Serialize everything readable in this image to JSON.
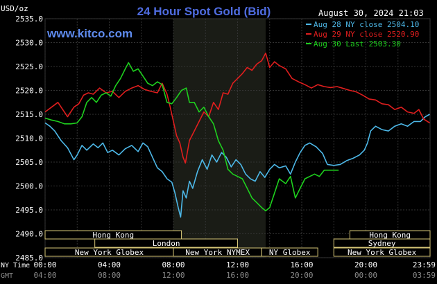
{
  "chart_data": {
    "type": "line",
    "title": "24 Hour Spot Gold (Bid)",
    "website": "www.kitco.com",
    "date_time": "August 30, 2024 21:03",
    "ylabel": "USD/oz",
    "ylim": [
      2485,
      2535
    ],
    "yticks": [
      "2535.0",
      "2530.0",
      "2525.0",
      "2520.0",
      "2515.0",
      "2510.0",
      "2505.0",
      "2500.0",
      "2495.0",
      "2490.0",
      "2485.0"
    ],
    "x_axis_rows": [
      {
        "label": "NY Time",
        "ticks": [
          "00:00",
          "04:00",
          "08:00",
          "12:00",
          "16:00",
          "20:00",
          "23:59"
        ],
        "color": "#ffffff"
      },
      {
        "label": "GMT",
        "ticks": [
          "04:00",
          "08:00",
          "12:00",
          "16:00",
          "20:00",
          "00:00",
          "03:59"
        ],
        "color": "#8a8a8a"
      }
    ],
    "xlim_hours": [
      0,
      24
    ],
    "grid": true,
    "highlight_band_hours": [
      8.0,
      13.75
    ],
    "legend_position": "top-right",
    "series": [
      {
        "name": "Aug 28 NY close 2504.10",
        "color": "#4db8e8",
        "points": [
          [
            0,
            2513.2
          ],
          [
            0.3,
            2512.5
          ],
          [
            0.6,
            2511.5
          ],
          [
            1.0,
            2509.5
          ],
          [
            1.4,
            2508.0
          ],
          [
            1.8,
            2505.5
          ],
          [
            2.0,
            2506.5
          ],
          [
            2.3,
            2508.5
          ],
          [
            2.6,
            2507.5
          ],
          [
            3.0,
            2508.8
          ],
          [
            3.3,
            2508.0
          ],
          [
            3.6,
            2509.0
          ],
          [
            3.9,
            2507.0
          ],
          [
            4.2,
            2507.5
          ],
          [
            4.6,
            2506.5
          ],
          [
            5.0,
            2507.8
          ],
          [
            5.4,
            2508.5
          ],
          [
            5.8,
            2507.2
          ],
          [
            6.1,
            2509.0
          ],
          [
            6.4,
            2508.2
          ],
          [
            6.7,
            2506.0
          ],
          [
            7.0,
            2503.8
          ],
          [
            7.3,
            2503.0
          ],
          [
            7.6,
            2501.5
          ],
          [
            7.9,
            2500.8
          ],
          [
            8.1,
            2498.5
          ],
          [
            8.3,
            2495.5
          ],
          [
            8.45,
            2493.5
          ],
          [
            8.6,
            2499.0
          ],
          [
            8.8,
            2497.5
          ],
          [
            9.0,
            2501.0
          ],
          [
            9.2,
            2499.5
          ],
          [
            9.5,
            2503.0
          ],
          [
            9.8,
            2505.5
          ],
          [
            10.1,
            2503.5
          ],
          [
            10.4,
            2506.5
          ],
          [
            10.7,
            2505.0
          ],
          [
            11.0,
            2507.0
          ],
          [
            11.3,
            2506.0
          ],
          [
            11.6,
            2504.0
          ],
          [
            11.9,
            2505.5
          ],
          [
            12.2,
            2504.5
          ],
          [
            12.5,
            2502.5
          ],
          [
            12.8,
            2501.5
          ],
          [
            13.1,
            2501.0
          ],
          [
            13.4,
            2503.0
          ],
          [
            13.7,
            2501.8
          ],
          [
            14.0,
            2503.5
          ],
          [
            14.3,
            2504.5
          ],
          [
            14.6,
            2503.8
          ],
          [
            15.0,
            2504.2
          ],
          [
            15.3,
            2502.5
          ],
          [
            15.6,
            2505.0
          ],
          [
            15.9,
            2507.0
          ],
          [
            16.2,
            2508.5
          ],
          [
            16.5,
            2509.0
          ],
          [
            16.9,
            2508.2
          ],
          [
            17.3,
            2506.8
          ],
          [
            17.6,
            2504.5
          ],
          [
            18.0,
            2504.3
          ],
          [
            18.4,
            2504.5
          ],
          [
            18.8,
            2505.3
          ],
          [
            19.2,
            2505.8
          ],
          [
            19.6,
            2506.5
          ],
          [
            19.9,
            2507.5
          ],
          [
            20.1,
            2509.0
          ],
          [
            20.3,
            2511.5
          ],
          [
            20.6,
            2512.5
          ],
          [
            21.0,
            2511.8
          ],
          [
            21.4,
            2511.5
          ],
          [
            21.8,
            2512.5
          ],
          [
            22.2,
            2513.0
          ],
          [
            22.6,
            2512.5
          ],
          [
            23.0,
            2513.5
          ],
          [
            23.4,
            2513.5
          ],
          [
            23.7,
            2514.5
          ],
          [
            23.98,
            2515.0
          ]
        ]
      },
      {
        "name": "Aug 29 NY close 2520.90",
        "color": "#e01e1e",
        "points": [
          [
            0,
            2515.5
          ],
          [
            0.4,
            2516.5
          ],
          [
            0.8,
            2517.5
          ],
          [
            1.1,
            2516.0
          ],
          [
            1.4,
            2514.5
          ],
          [
            1.8,
            2516.5
          ],
          [
            2.1,
            2517.2
          ],
          [
            2.4,
            2519.0
          ],
          [
            2.7,
            2519.5
          ],
          [
            3.0,
            2519.2
          ],
          [
            3.4,
            2520.5
          ],
          [
            3.8,
            2519.5
          ],
          [
            4.2,
            2519.8
          ],
          [
            4.6,
            2518.5
          ],
          [
            5.0,
            2519.8
          ],
          [
            5.4,
            2520.5
          ],
          [
            5.8,
            2521.0
          ],
          [
            6.2,
            2520.2
          ],
          [
            6.6,
            2519.8
          ],
          [
            7.0,
            2519.5
          ],
          [
            7.3,
            2521.5
          ],
          [
            7.6,
            2519.2
          ],
          [
            7.8,
            2516.5
          ],
          [
            8.0,
            2513.5
          ],
          [
            8.2,
            2510.5
          ],
          [
            8.4,
            2509.0
          ],
          [
            8.6,
            2506.0
          ],
          [
            8.75,
            2504.8
          ],
          [
            9.0,
            2509.5
          ],
          [
            9.3,
            2511.5
          ],
          [
            9.6,
            2513.5
          ],
          [
            9.9,
            2515.5
          ],
          [
            10.2,
            2514.5
          ],
          [
            10.5,
            2517.5
          ],
          [
            10.8,
            2516.0
          ],
          [
            11.1,
            2519.5
          ],
          [
            11.4,
            2519.2
          ],
          [
            11.7,
            2521.5
          ],
          [
            12.0,
            2522.5
          ],
          [
            12.3,
            2523.5
          ],
          [
            12.6,
            2524.8
          ],
          [
            12.9,
            2524.2
          ],
          [
            13.2,
            2525.5
          ],
          [
            13.5,
            2526.2
          ],
          [
            13.75,
            2527.8
          ],
          [
            14.0,
            2524.8
          ],
          [
            14.3,
            2526.0
          ],
          [
            14.6,
            2525.2
          ],
          [
            15.0,
            2524.5
          ],
          [
            15.4,
            2522.5
          ],
          [
            15.8,
            2521.8
          ],
          [
            16.2,
            2521.2
          ],
          [
            16.6,
            2520.5
          ],
          [
            17.0,
            2521.2
          ],
          [
            17.4,
            2520.8
          ],
          [
            17.8,
            2520.6
          ],
          [
            18.2,
            2520.8
          ],
          [
            18.6,
            2520.4
          ],
          [
            19.0,
            2520.0
          ],
          [
            19.4,
            2519.7
          ],
          [
            19.8,
            2519.0
          ],
          [
            20.2,
            2518.2
          ],
          [
            20.6,
            2518.0
          ],
          [
            21.0,
            2517.2
          ],
          [
            21.4,
            2517.0
          ],
          [
            21.8,
            2516.0
          ],
          [
            22.2,
            2516.5
          ],
          [
            22.6,
            2515.5
          ],
          [
            23.0,
            2515.2
          ],
          [
            23.3,
            2516.0
          ],
          [
            23.6,
            2514.0
          ],
          [
            23.98,
            2513.2
          ]
        ]
      },
      {
        "name": "Aug 30 Last 2503.30",
        "color": "#1ed01e",
        "points": [
          [
            0,
            2514.2
          ],
          [
            0.4,
            2513.8
          ],
          [
            0.8,
            2513.5
          ],
          [
            1.2,
            2513.0
          ],
          [
            1.6,
            2513.0
          ],
          [
            2.0,
            2513.2
          ],
          [
            2.3,
            2514.5
          ],
          [
            2.6,
            2517.5
          ],
          [
            2.9,
            2518.5
          ],
          [
            3.2,
            2517.5
          ],
          [
            3.5,
            2519.0
          ],
          [
            3.8,
            2519.5
          ],
          [
            4.1,
            2518.8
          ],
          [
            4.4,
            2521.0
          ],
          [
            4.7,
            2522.5
          ],
          [
            5.0,
            2524.5
          ],
          [
            5.2,
            2525.8
          ],
          [
            5.5,
            2524.0
          ],
          [
            5.8,
            2524.5
          ],
          [
            6.1,
            2523.0
          ],
          [
            6.4,
            2521.5
          ],
          [
            6.7,
            2521.0
          ],
          [
            7.0,
            2521.8
          ],
          [
            7.3,
            2521.2
          ],
          [
            7.6,
            2517.5
          ],
          [
            7.9,
            2517.2
          ],
          [
            8.2,
            2518.5
          ],
          [
            8.5,
            2520.0
          ],
          [
            8.8,
            2520.5
          ],
          [
            9.0,
            2517.5
          ],
          [
            9.3,
            2517.5
          ],
          [
            9.6,
            2515.5
          ],
          [
            9.9,
            2516.5
          ],
          [
            10.2,
            2514.5
          ],
          [
            10.5,
            2513.0
          ],
          [
            10.8,
            2509.5
          ],
          [
            11.1,
            2507.5
          ],
          [
            11.4,
            2503.5
          ],
          [
            11.7,
            2502.5
          ],
          [
            12.0,
            2502.0
          ],
          [
            12.3,
            2501.5
          ],
          [
            12.6,
            2499.5
          ],
          [
            12.9,
            2497.5
          ],
          [
            13.2,
            2496.5
          ],
          [
            13.5,
            2495.5
          ],
          [
            13.75,
            2494.8
          ],
          [
            14.0,
            2495.5
          ],
          [
            14.3,
            2498.5
          ],
          [
            14.6,
            2501.5
          ],
          [
            15.0,
            2500.5
          ],
          [
            15.3,
            2502.0
          ],
          [
            15.6,
            2497.5
          ],
          [
            15.9,
            2499.5
          ],
          [
            16.2,
            2501.5
          ],
          [
            16.5,
            2502.0
          ],
          [
            16.8,
            2502.5
          ],
          [
            17.1,
            2502.0
          ],
          [
            17.4,
            2503.3
          ],
          [
            18.0,
            2503.3
          ],
          [
            18.3,
            2503.3
          ]
        ]
      }
    ]
  },
  "sessions": [
    {
      "label": "Hong Kong",
      "start": 0.0,
      "end": 8.5,
      "row": 1
    },
    {
      "label": "London",
      "start": 3.1,
      "end": 12.0,
      "row": 2
    },
    {
      "label": "New York Globex",
      "start": 0.0,
      "end": 8.0,
      "row": 3
    },
    {
      "label": "New York NYMEX",
      "start": 8.0,
      "end": 13.5,
      "row": 3
    },
    {
      "label": "NY Globex",
      "start": 13.5,
      "end": 17.0,
      "row": 3
    },
    {
      "label": "Hong Kong",
      "start": 19.0,
      "end": 24.0,
      "row": 1
    },
    {
      "label": "Sydney",
      "start": 18.0,
      "end": 24.0,
      "row": 2
    },
    {
      "label": "New York Globex",
      "start": 18.0,
      "end": 24.0,
      "row": 3
    }
  ]
}
